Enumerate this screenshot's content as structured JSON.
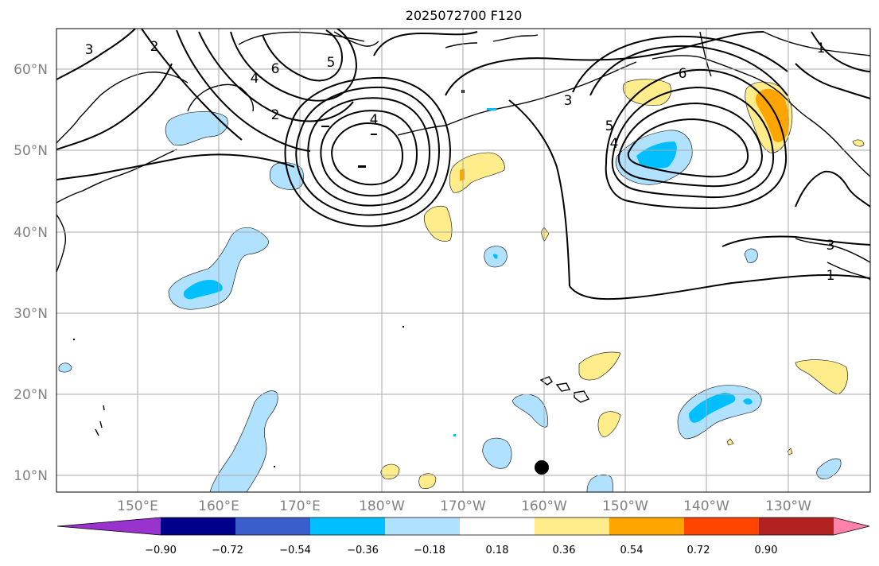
{
  "title": "2025072700 F120",
  "map": {
    "lat_labels": [
      "60°N",
      "50°N",
      "40°N",
      "30°N",
      "20°N",
      "10°N"
    ],
    "lon_labels": [
      "150°E",
      "160°E",
      "170°E",
      "180°W",
      "170°W",
      "160°W",
      "150°W",
      "140°W",
      "130°W"
    ],
    "contour_labels": [
      "3",
      "2",
      "6",
      "5",
      "4",
      "2",
      "4",
      "6",
      "3",
      "5",
      "4",
      "1",
      "3",
      "1"
    ],
    "marker_icon": "black-dot"
  },
  "colorbar": {
    "colors": [
      "#9a32cd",
      "#00008b",
      "#3a5fcd",
      "#00bfff",
      "#b0e2ff",
      "#ffffff",
      "#ffec8b",
      "#ffa500",
      "#ff4500",
      "#b22222",
      "#ff82ab"
    ],
    "tick_labels": [
      "−0.90",
      "−0.72",
      "−0.54",
      "−0.36",
      "−0.18",
      "0.18",
      "0.36",
      "0.54",
      "0.72",
      "0.90"
    ]
  }
}
